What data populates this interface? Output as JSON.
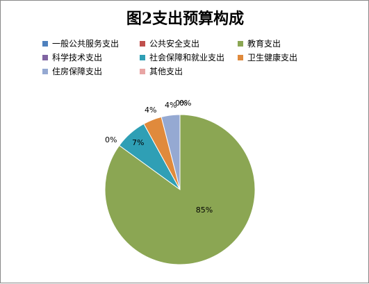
{
  "chart_data": {
    "type": "pie",
    "title": "图2支出预算构成",
    "legend_position": "top",
    "categories": [
      "一般公共服务支出",
      "公共安全支出",
      "教育支出",
      "科学技术支出",
      "社会保障和就业支出",
      "卫生健康支出",
      "住房保障支出",
      "其他支出"
    ],
    "values": [
      0,
      0,
      85,
      0,
      7,
      4,
      4,
      0
    ],
    "labels": [
      "0%",
      "",
      "85%",
      "0%",
      "7%",
      "4%",
      "4%",
      "0%"
    ],
    "colors": [
      "#4F81BD",
      "#C0504D",
      "#8BA653",
      "#8064A2",
      "#2F9FB5",
      "#E08A3C",
      "#95A9D2",
      "#E8A5A4"
    ]
  }
}
